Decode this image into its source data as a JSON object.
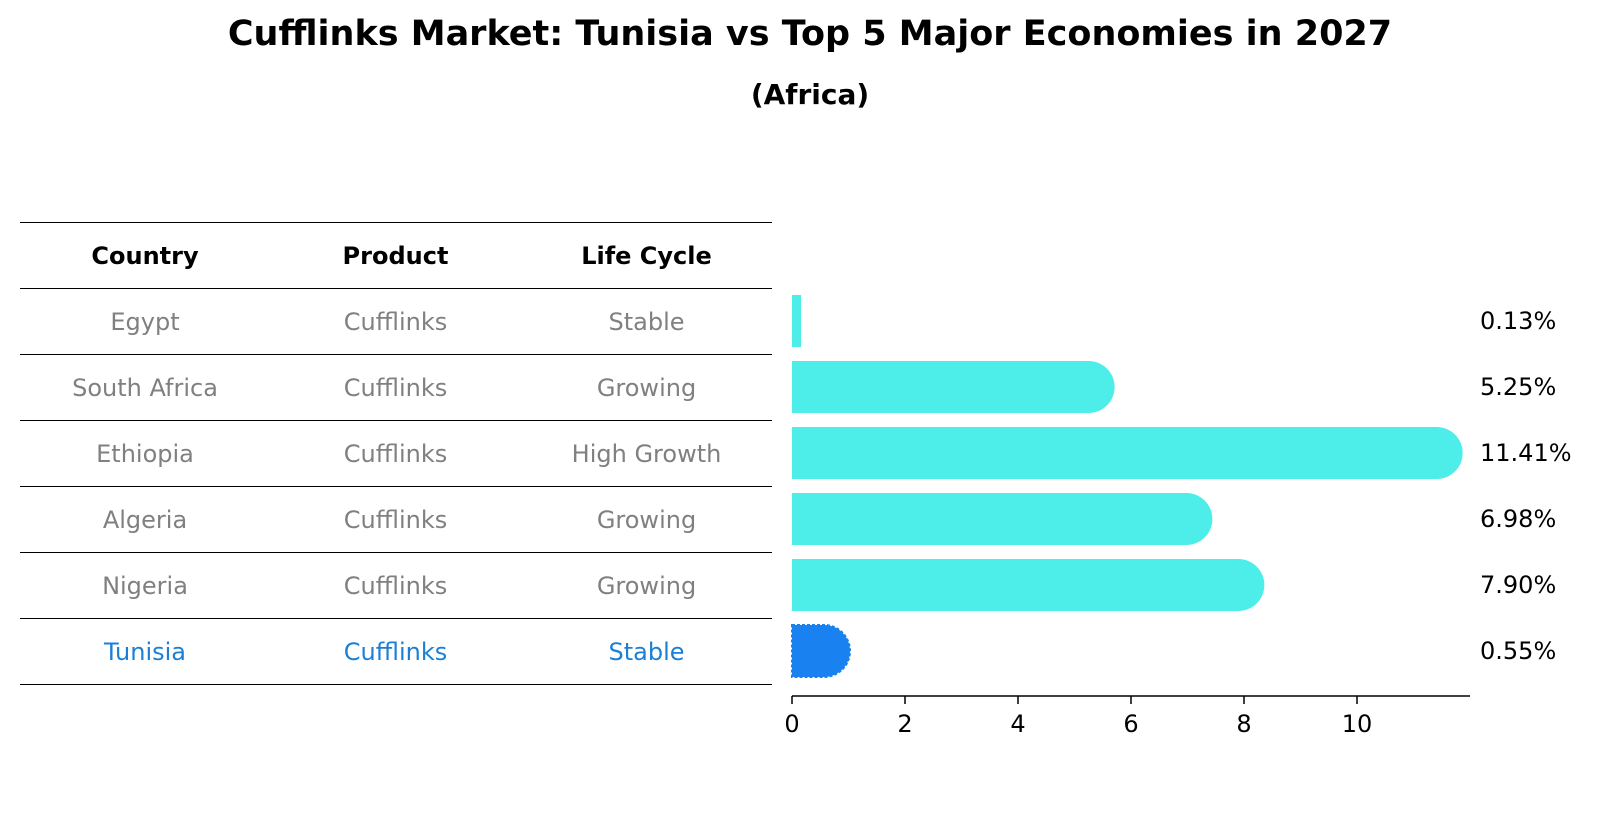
{
  "title": "Cufflinks Market: Tunisia vs Top 5 Major Economies in 2027",
  "subtitle": "(Africa)",
  "table": {
    "headers": [
      "Country",
      "Product",
      "Life Cycle"
    ],
    "rows": [
      [
        "Egypt",
        "Cufflinks",
        "Stable"
      ],
      [
        "South Africa",
        "Cufflinks",
        "Growing"
      ],
      [
        "Ethiopia",
        "Cufflinks",
        "High Growth"
      ],
      [
        "Algeria",
        "Cufflinks",
        "Growing"
      ],
      [
        "Nigeria",
        "Cufflinks",
        "Growing"
      ],
      [
        "Tunisia",
        "Cufflinks",
        "Stable"
      ]
    ]
  },
  "colors": {
    "bar": "#4dede9",
    "highlight_bar": "#1a82f0",
    "highlight_text": "#1a7fd6",
    "muted_text": "#808080"
  },
  "chart_data": {
    "type": "bar",
    "orientation": "horizontal",
    "categories": [
      "Egypt",
      "South Africa",
      "Ethiopia",
      "Algeria",
      "Nigeria",
      "Tunisia"
    ],
    "values": [
      0.13,
      5.25,
      11.41,
      6.98,
      7.9,
      0.55
    ],
    "value_labels": [
      "0.13%",
      "5.25%",
      "11.41%",
      "6.98%",
      "7.90%",
      "0.55%"
    ],
    "highlight": "Tunisia",
    "xticks": [
      0,
      2,
      4,
      6,
      8,
      10
    ],
    "xlim": [
      0,
      12
    ],
    "grid": false
  }
}
